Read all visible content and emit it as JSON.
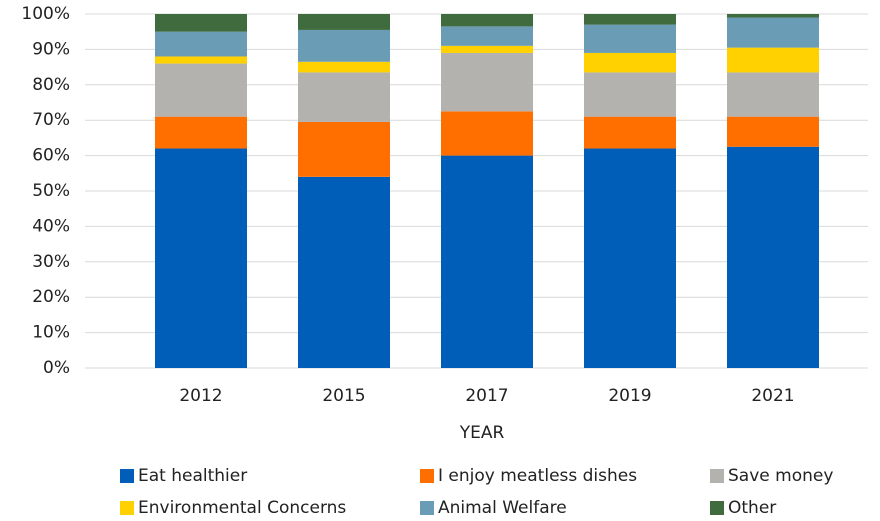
{
  "chart_data": {
    "type": "stacked_bar",
    "x_label": "YEAR",
    "categories": [
      "2012",
      "2015",
      "2017",
      "2019",
      "2021"
    ],
    "series": [
      {
        "name": "Eat healthier",
        "color": "#005eb8",
        "values": [
          62,
          54,
          60,
          62,
          62.5
        ]
      },
      {
        "name": "I enjoy meatless dishes",
        "color": "#ff6f00",
        "values": [
          9,
          15.5,
          12.5,
          9,
          8.5
        ]
      },
      {
        "name": "Save money",
        "color": "#b3b2ae",
        "values": [
          15,
          14,
          16.5,
          12.5,
          12.5
        ]
      },
      {
        "name": "Environmental Concerns",
        "color": "#ffd100",
        "values": [
          2,
          3,
          2,
          5.5,
          7
        ]
      },
      {
        "name": "Animal Welfare",
        "color": "#6a9cb5",
        "values": [
          7,
          9,
          5.5,
          8,
          8.5
        ]
      },
      {
        "name": "Other",
        "color": "#3f6b3f",
        "values": [
          5,
          4.5,
          3.5,
          3,
          1
        ]
      }
    ],
    "ylim": [
      0,
      100
    ],
    "yticks": [
      {
        "value": 0,
        "label": "0%"
      },
      {
        "value": 10,
        "label": "10%"
      },
      {
        "value": 20,
        "label": "20%"
      },
      {
        "value": 30,
        "label": "30%"
      },
      {
        "value": 40,
        "label": "40%"
      },
      {
        "value": 50,
        "label": "50%"
      },
      {
        "value": 60,
        "label": "60%"
      },
      {
        "value": 70,
        "label": "70%"
      },
      {
        "value": 80,
        "label": "80%"
      },
      {
        "value": 90,
        "label": "90%"
      },
      {
        "value": 100,
        "label": "100%"
      }
    ],
    "grid": true,
    "legend": "bottom"
  }
}
